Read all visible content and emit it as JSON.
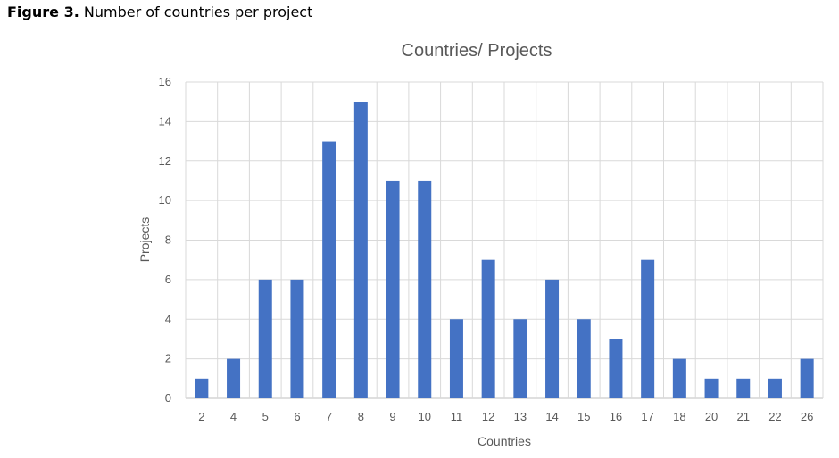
{
  "figure": {
    "label": "Figure 3.",
    "caption": "Number of countries per project"
  },
  "colors": {
    "bar": "#4472c4",
    "grid": "#d9d9d9",
    "text": "#595959"
  },
  "chart_data": {
    "type": "bar",
    "title": "Countries/ Projects",
    "xlabel": "Countries",
    "ylabel": "Projects",
    "categories": [
      "2",
      "4",
      "5",
      "6",
      "7",
      "8",
      "9",
      "10",
      "11",
      "12",
      "13",
      "14",
      "15",
      "16",
      "17",
      "18",
      "20",
      "21",
      "22",
      "26"
    ],
    "series": [
      {
        "values": [
          1,
          2,
          6,
          6,
          13,
          15,
          11,
          11,
          4,
          7,
          4,
          6,
          4,
          3,
          7,
          2,
          1,
          1,
          1,
          2
        ]
      }
    ],
    "ylim": [
      0,
      16
    ],
    "yticks": [
      0,
      2,
      4,
      6,
      8,
      10,
      12,
      14,
      16
    ],
    "grid": true,
    "legend": "none"
  }
}
